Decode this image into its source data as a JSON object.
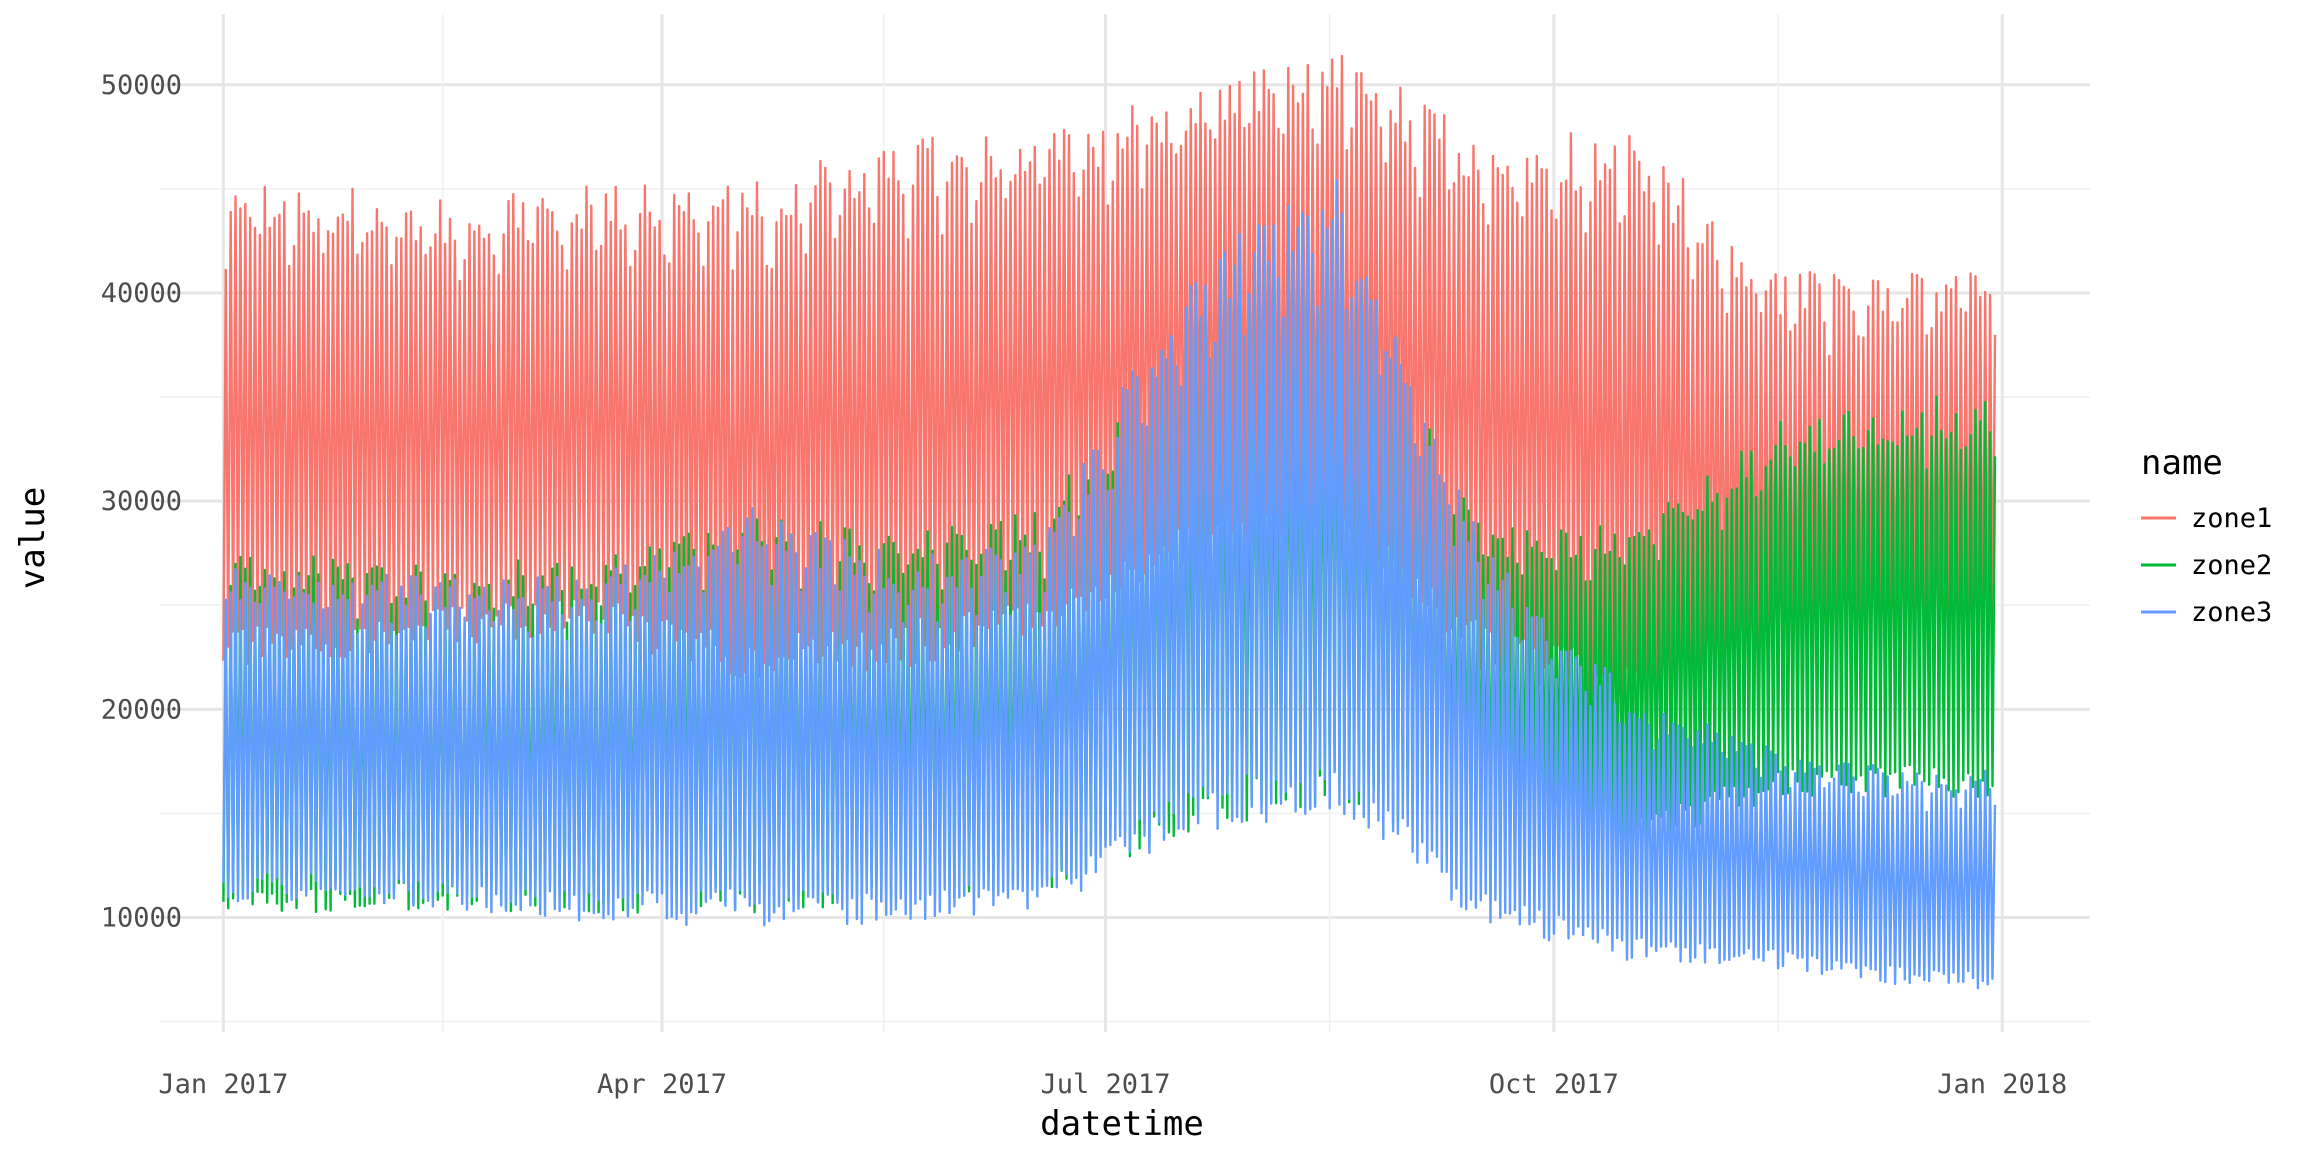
{
  "chart_data": {
    "type": "line",
    "xlabel": "datetime",
    "ylabel": "value",
    "x_ticks": [
      "Jan 2017",
      "Apr 2017",
      "Jul 2017",
      "Oct 2017",
      "Jan 2018"
    ],
    "x_tick_dates": [
      "2017-01-01",
      "2017-04-01",
      "2017-07-01",
      "2017-10-01",
      "2018-01-01"
    ],
    "xlim": [
      "2016-12-19",
      "2018-01-19"
    ],
    "y_ticks": [
      10000,
      20000,
      30000,
      40000,
      50000
    ],
    "ylim": [
      4500,
      53400
    ],
    "grid": true,
    "legend": {
      "title": "name",
      "placement": "right"
    },
    "sampling": "daily min and max (hourly data, daily oscillation)",
    "series": [
      {
        "name": "zone1",
        "color": "#F8766D",
        "months": [
          "Jan",
          "Feb",
          "Mar",
          "Apr",
          "May",
          "Jun",
          "Jul",
          "Aug",
          "Sep",
          "Oct",
          "Nov",
          "Dec"
        ],
        "daily_min_by_month": [
          23000,
          24000,
          24500,
          22500,
          23000,
          24500,
          28000,
          29000,
          23000,
          21000,
          20500,
          22000
        ],
        "daily_max_by_month": [
          44000,
          43500,
          44000,
          44000,
          46000,
          46500,
          48500,
          50500,
          46000,
          46500,
          40000,
          40000
        ]
      },
      {
        "name": "zone2",
        "color": "#00BA38",
        "months": [
          "Jan",
          "Feb",
          "Mar",
          "Apr",
          "May",
          "Jun",
          "Jul",
          "Aug",
          "Sep",
          "Oct",
          "Nov",
          "Dec"
        ],
        "daily_min_by_month": [
          11000,
          11000,
          11000,
          11000,
          11500,
          12000,
          15000,
          16500,
          14000,
          14000,
          16500,
          16500
        ],
        "daily_max_by_month": [
          26500,
          26000,
          26500,
          28500,
          27500,
          28500,
          37000,
          40000,
          28000,
          28000,
          33000,
          34000
        ]
      },
      {
        "name": "zone3",
        "color": "#619CFF",
        "months": [
          "Jan",
          "Feb",
          "Mar",
          "Apr",
          "May",
          "Jun",
          "Jul",
          "Aug",
          "Sep",
          "Oct",
          "Nov",
          "Dec"
        ],
        "daily_min_by_month": [
          11500,
          11000,
          10500,
          10500,
          10500,
          11000,
          15000,
          16500,
          10500,
          8500,
          8000,
          7000
        ],
        "daily_max_by_month": [
          26000,
          25500,
          25500,
          29000,
          26500,
          27000,
          40000,
          44000,
          27000,
          20000,
          17500,
          16500
        ]
      }
    ]
  }
}
